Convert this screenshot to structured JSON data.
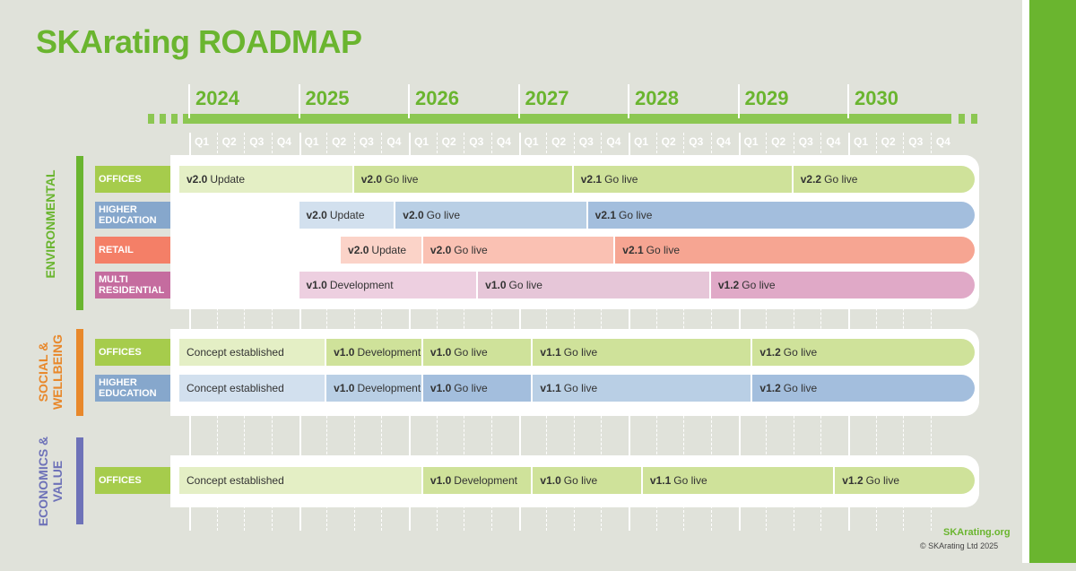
{
  "title": "SKArating ROADMAP",
  "years": [
    "2024",
    "2025",
    "2026",
    "2027",
    "2028",
    "2029",
    "2030"
  ],
  "quarters": [
    "Q1",
    "Q2",
    "Q3",
    "Q4"
  ],
  "colors": {
    "brand_green": "#6ab52f",
    "environmental": "#6ab52f",
    "social": "#e8882b",
    "economics": "#6e72b8",
    "offices": "#a6cc4c",
    "higher_education": "#86a7cc",
    "retail": "#f47f67",
    "multi_residential": "#c56c9f"
  },
  "sections": [
    {
      "label": "ENVIRONMENTAL",
      "rows": [
        {
          "category": "OFFICES",
          "start": 2024.0,
          "segments": [
            {
              "version": "v2.0",
              "text": "Update",
              "start": 2024.0,
              "end": 2025.5
            },
            {
              "version": "v2.0",
              "text": "Go live",
              "start": 2025.5,
              "end": 2027.5
            },
            {
              "version": "v2.1",
              "text": "Go live",
              "start": 2027.5,
              "end": 2029.5
            },
            {
              "version": "v2.2",
              "text": "Go live",
              "start": 2029.5,
              "end": 2031.15
            }
          ]
        },
        {
          "category": "HIGHER EDUCATION",
          "start": 2025.0,
          "segments": [
            {
              "version": "v2.0",
              "text": "Update",
              "start": 2025.0,
              "end": 2025.88
            },
            {
              "version": "v2.0",
              "text": "Go live",
              "start": 2025.88,
              "end": 2027.63
            },
            {
              "version": "v2.1",
              "text": "Go live",
              "start": 2027.63,
              "end": 2031.15
            }
          ]
        },
        {
          "category": "RETAIL",
          "start": 2025.38,
          "segments": [
            {
              "version": "v2.0",
              "text": "Update",
              "start": 2025.38,
              "end": 2026.13
            },
            {
              "version": "v2.0",
              "text": "Go live",
              "start": 2026.13,
              "end": 2027.88
            },
            {
              "version": "v2.1",
              "text": "Go live",
              "start": 2027.88,
              "end": 2031.15
            }
          ]
        },
        {
          "category": "MULTI RESIDENTIAL",
          "start": 2025.0,
          "segments": [
            {
              "version": "v1.0",
              "text": "Development",
              "start": 2025.0,
              "end": 2026.63
            },
            {
              "version": "v1.0",
              "text": "Go live",
              "start": 2026.63,
              "end": 2028.75
            },
            {
              "version": "v1.2",
              "text": "Go live",
              "start": 2028.75,
              "end": 2031.15
            }
          ]
        }
      ]
    },
    {
      "label": "SOCIAL & WELLBEING",
      "rows": [
        {
          "category": "OFFICES",
          "start": 2024.0,
          "segments": [
            {
              "version": "",
              "text": "Concept established",
              "start": 2024.0,
              "end": 2025.25
            },
            {
              "version": "v1.0",
              "text": "Development",
              "start": 2025.25,
              "end": 2026.13
            },
            {
              "version": "v1.0",
              "text": "Go live",
              "start": 2026.13,
              "end": 2027.13
            },
            {
              "version": "v1.1",
              "text": "Go live",
              "start": 2027.13,
              "end": 2029.13
            },
            {
              "version": "v1.2",
              "text": "Go live",
              "start": 2029.13,
              "end": 2031.15
            }
          ]
        },
        {
          "category": "HIGHER EDUCATION",
          "start": 2024.0,
          "segments": [
            {
              "version": "",
              "text": "Concept established",
              "start": 2024.0,
              "end": 2025.25
            },
            {
              "version": "v1.0",
              "text": "Development",
              "start": 2025.25,
              "end": 2026.13
            },
            {
              "version": "v1.0",
              "text": "Go live",
              "start": 2026.13,
              "end": 2027.13
            },
            {
              "version": "v1.1",
              "text": "Go live",
              "start": 2027.13,
              "end": 2029.13
            },
            {
              "version": "v1.2",
              "text": "Go live",
              "start": 2029.13,
              "end": 2031.15
            }
          ]
        }
      ]
    },
    {
      "label": "ECONOMICS & VALUE",
      "rows": [
        {
          "category": "OFFICES",
          "start": 2024.0,
          "segments": [
            {
              "version": "",
              "text": "Concept established",
              "start": 2024.0,
              "end": 2026.13
            },
            {
              "version": "v1.0",
              "text": "Development",
              "start": 2026.13,
              "end": 2027.13
            },
            {
              "version": "v1.0",
              "text": "Go live",
              "start": 2027.13,
              "end": 2028.13
            },
            {
              "version": "v1.1",
              "text": "Go live",
              "start": 2028.13,
              "end": 2029.88
            },
            {
              "version": "v1.2",
              "text": "Go live",
              "start": 2029.88,
              "end": 2031.15
            }
          ]
        }
      ]
    }
  ],
  "footer": {
    "site": "SKArating.org",
    "copyright": "© SKArating Ltd 2025"
  }
}
